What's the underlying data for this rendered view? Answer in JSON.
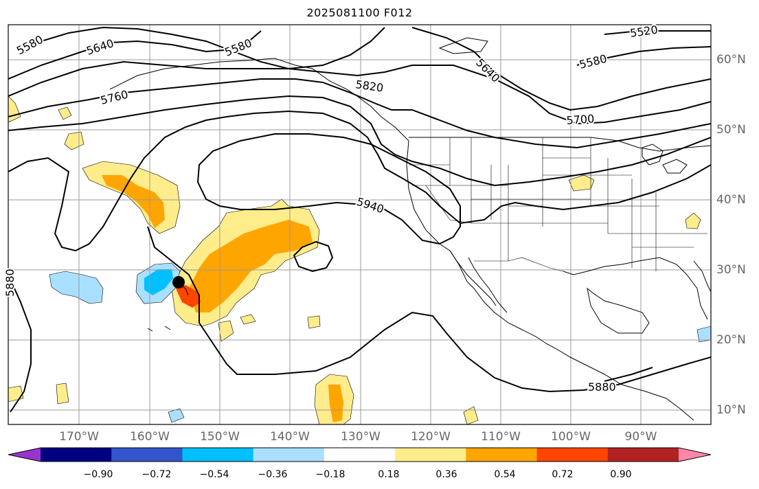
{
  "title": "2025081100 F012",
  "lon_labels": [
    "170°W",
    "160°W",
    "150°W",
    "140°W",
    "130°W",
    "120°W",
    "110°W",
    "100°W",
    "90°W"
  ],
  "lat_labels": [
    "60°N",
    "50°N",
    "40°N",
    "30°N",
    "20°N",
    "10°N"
  ],
  "contour_labels": [
    "5580",
    "5640",
    "5580",
    "5760",
    "5820",
    "5640",
    "5520",
    "5580",
    "5700",
    "5940",
    "5880",
    "5880"
  ],
  "colorbar": {
    "colors": [
      "#9933cc",
      "#000080",
      "#3355cc",
      "#00bfff",
      "#aae0ff",
      "#ffffff",
      "#ffec8b",
      "#ffa500",
      "#ff4500",
      "#b22222",
      "#ff88aa"
    ],
    "ticks": [
      "−0.90",
      "−0.72",
      "−0.54",
      "−0.36",
      "−0.18",
      "0.18",
      "0.36",
      "0.54",
      "0.72",
      "0.90"
    ]
  }
}
